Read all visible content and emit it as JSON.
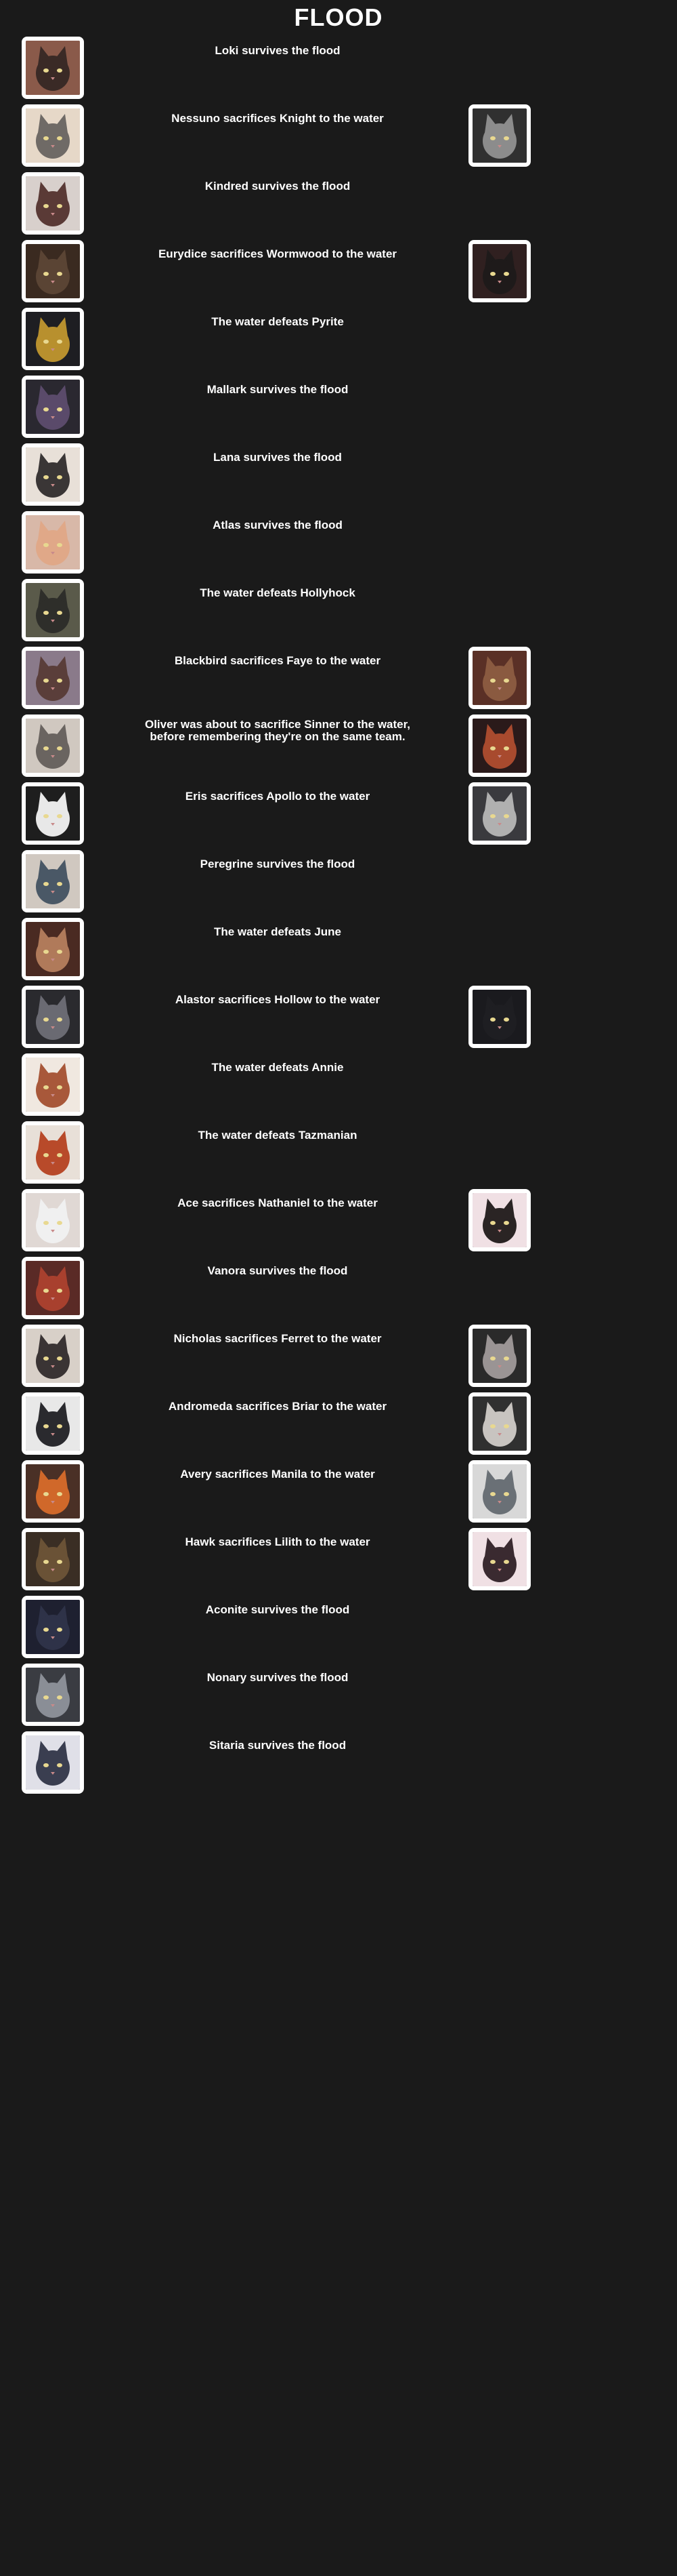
{
  "title": "FLOOD",
  "events": [
    {
      "text": "Loki survives the flood",
      "left_avatar": {
        "icon": "cat-portrait-icon",
        "bg": "#8a5a4a",
        "fur": "#3a2a26"
      },
      "right_avatar": null
    },
    {
      "text": "Nessuno sacrifices Knight to the water",
      "left_avatar": {
        "icon": "cat-portrait-icon",
        "bg": "#e6d8c8",
        "fur": "#6f6a66"
      },
      "right_avatar": {
        "icon": "cat-portrait-icon",
        "bg": "#303030",
        "fur": "#8c8c8c"
      }
    },
    {
      "text": "Kindred survives the flood",
      "left_avatar": {
        "icon": "cat-portrait-icon",
        "bg": "#d8d0cc",
        "fur": "#5a3a36"
      },
      "right_avatar": null
    },
    {
      "text": "Eurydice sacrifices Wormwood to the water",
      "left_avatar": {
        "icon": "cat-portrait-icon",
        "bg": "#3a2a20",
        "fur": "#5a4434"
      },
      "right_avatar": {
        "icon": "cat-portrait-icon",
        "bg": "#302020",
        "fur": "#1e1a1a"
      }
    },
    {
      "text": "The water defeats Pyrite",
      "left_avatar": {
        "icon": "cat-portrait-icon",
        "bg": "#1e1e22",
        "fur": "#b8902e"
      },
      "right_avatar": null
    },
    {
      "text": "Mallark survives the flood",
      "left_avatar": {
        "icon": "cat-portrait-icon",
        "bg": "#2a2830",
        "fur": "#5a4a6a"
      },
      "right_avatar": null
    },
    {
      "text": "Lana survives the flood",
      "left_avatar": {
        "icon": "cat-portrait-icon",
        "bg": "#e8e0d8",
        "fur": "#3a3636"
      },
      "right_avatar": null
    },
    {
      "text": "Atlas survives the flood",
      "left_avatar": {
        "icon": "cat-portrait-icon",
        "bg": "#d8b8a8",
        "fur": "#e0a888"
      },
      "right_avatar": null
    },
    {
      "text": "The water defeats Hollyhock",
      "left_avatar": {
        "icon": "cat-portrait-icon",
        "bg": "#5a5a4a",
        "fur": "#2e2e2a"
      },
      "right_avatar": null
    },
    {
      "text": "Blackbird sacrifices Faye to the water",
      "left_avatar": {
        "icon": "cat-portrait-icon",
        "bg": "#8a7a8a",
        "fur": "#5a3e3a"
      },
      "right_avatar": {
        "icon": "cat-portrait-icon",
        "bg": "#5a3026",
        "fur": "#8a5a40"
      }
    },
    {
      "text": "Oliver was about to sacrifice Sinner to the water,\nbefore remembering they're on the same team.",
      "left_avatar": {
        "icon": "cat-portrait-icon",
        "bg": "#d0c8c0",
        "fur": "#6a6460"
      },
      "right_avatar": {
        "icon": "cat-portrait-icon",
        "bg": "#2a1a1a",
        "fur": "#a84a2e"
      }
    },
    {
      "text": "Eris sacrifices Apollo to the water",
      "left_avatar": {
        "icon": "cat-portrait-icon",
        "bg": "#1e1e1e",
        "fur": "#e8e8e8"
      },
      "right_avatar": {
        "icon": "cat-portrait-icon",
        "bg": "#3a3a3e",
        "fur": "#b0b0b0"
      }
    },
    {
      "text": "Peregrine survives the flood",
      "left_avatar": {
        "icon": "cat-portrait-icon",
        "bg": "#d0c8c0",
        "fur": "#4a5866"
      },
      "right_avatar": null
    },
    {
      "text": "The water defeats June",
      "left_avatar": {
        "icon": "cat-portrait-icon",
        "bg": "#4a2a22",
        "fur": "#b07a5a"
      },
      "right_avatar": null
    },
    {
      "text": "Alastor sacrifices Hollow to the water",
      "left_avatar": {
        "icon": "cat-portrait-icon",
        "bg": "#2a2a2e",
        "fur": "#6a6a72"
      },
      "right_avatar": {
        "icon": "cat-portrait-icon",
        "bg": "#1a1a1e",
        "fur": "#1e1e22"
      }
    },
    {
      "text": "The water defeats Annie",
      "left_avatar": {
        "icon": "cat-portrait-icon",
        "bg": "#f0e8e0",
        "fur": "#a8583a"
      },
      "right_avatar": null
    },
    {
      "text": "The water defeats Tazmanian",
      "left_avatar": {
        "icon": "cat-portrait-icon",
        "bg": "#e8e0d8",
        "fur": "#b84a2a"
      },
      "right_avatar": null
    },
    {
      "text": "Ace sacrifices Nathaniel to the water",
      "left_avatar": {
        "icon": "cat-portrait-icon",
        "bg": "#e0d8d4",
        "fur": "#f0f0f0"
      },
      "right_avatar": {
        "icon": "cat-portrait-icon",
        "bg": "#f0e0e4",
        "fur": "#2a2424"
      }
    },
    {
      "text": "Vanora survives the flood",
      "left_avatar": {
        "icon": "cat-portrait-icon",
        "bg": "#5a2a26",
        "fur": "#a8402e"
      },
      "right_avatar": null
    },
    {
      "text": "Nicholas sacrifices Ferret to the water",
      "left_avatar": {
        "icon": "cat-portrait-icon",
        "bg": "#d8d0c8",
        "fur": "#3a3434"
      },
      "right_avatar": {
        "icon": "cat-portrait-icon",
        "bg": "#2a2a2a",
        "fur": "#9a9494"
      }
    },
    {
      "text": "Andromeda sacrifices Briar to the water",
      "left_avatar": {
        "icon": "cat-portrait-icon",
        "bg": "#e8e8e8",
        "fur": "#2a2a2e"
      },
      "right_avatar": {
        "icon": "cat-portrait-icon",
        "bg": "#303030",
        "fur": "#c8c4c0"
      }
    },
    {
      "text": "Avery sacrifices Manila to the water",
      "left_avatar": {
        "icon": "cat-portrait-icon",
        "bg": "#4a3026",
        "fur": "#d0682a"
      },
      "right_avatar": {
        "icon": "cat-portrait-icon",
        "bg": "#d8d8d8",
        "fur": "#6a7076"
      }
    },
    {
      "text": "Hawk sacrifices Lilith to the water",
      "left_avatar": {
        "icon": "cat-portrait-icon",
        "bg": "#3a2e24",
        "fur": "#6a5236"
      },
      "right_avatar": {
        "icon": "cat-portrait-icon",
        "bg": "#f0e0e4",
        "fur": "#3a2a30"
      }
    },
    {
      "text": "Aconite survives the flood",
      "left_avatar": {
        "icon": "cat-portrait-icon",
        "bg": "#1e2030",
        "fur": "#2e3248"
      },
      "right_avatar": null
    },
    {
      "text": "Nonary survives the flood",
      "left_avatar": {
        "icon": "cat-portrait-icon",
        "bg": "#3a3c42",
        "fur": "#8a8e96"
      },
      "right_avatar": null
    },
    {
      "text": "Sitaria survives the flood",
      "left_avatar": {
        "icon": "cat-portrait-icon",
        "bg": "#e0e0e8",
        "fur": "#3a3e50"
      },
      "right_avatar": null
    }
  ]
}
